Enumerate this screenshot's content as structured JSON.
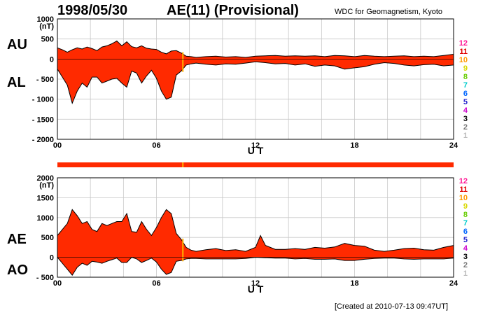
{
  "header": {
    "date": "1998/05/30",
    "title": "AE(11) (Provisional)",
    "source": "WDC for Geomagnetism, Kyoto"
  },
  "footer": {
    "created": "[Created at 2010-07-13 09:47UT]"
  },
  "colors": {
    "fill": "#ff2a00",
    "outline": "#000000",
    "grid": "#c8c8c8",
    "frame": "#000000",
    "highlight": "#ffb000",
    "coverage_bar": "#ff2a00"
  },
  "chart_data": [
    {
      "type": "area",
      "panel": "upper",
      "ylabel_unit": "(nT)",
      "side_labels": [
        "AU",
        "AL"
      ],
      "xlabel": "U T",
      "xlim": [
        0,
        24
      ],
      "ylim": [
        -2000,
        1000
      ],
      "yticks": [
        1000,
        500,
        0,
        -500,
        -1000,
        -1500,
        -2000
      ],
      "ytick_labels": [
        "1000",
        "500",
        "0",
        "- 500",
        "- 1000",
        "- 1500",
        "- 2000"
      ],
      "xticks": [
        0,
        6,
        12,
        18,
        24
      ],
      "xtick_labels": [
        "00",
        "06",
        "12",
        "18",
        "24"
      ],
      "grid": true,
      "highlight_x": 7.6,
      "series": [
        {
          "name": "AU",
          "x": [
            0,
            0.3,
            0.6,
            0.9,
            1.2,
            1.5,
            1.8,
            2.1,
            2.4,
            2.7,
            3.0,
            3.3,
            3.6,
            3.9,
            4.2,
            4.5,
            4.8,
            5.1,
            5.4,
            5.7,
            6.0,
            6.3,
            6.6,
            6.9,
            7.2,
            7.5,
            7.8,
            8.1,
            8.4,
            9,
            9.6,
            10.2,
            10.8,
            11.4,
            12,
            12.6,
            13.2,
            13.8,
            14.4,
            15,
            15.6,
            16.2,
            16.8,
            17.4,
            18,
            18.6,
            19.2,
            19.8,
            20.4,
            21,
            21.6,
            22.2,
            22.8,
            23.4,
            24
          ],
          "y": [
            280,
            230,
            170,
            230,
            280,
            250,
            300,
            260,
            210,
            300,
            330,
            380,
            450,
            330,
            430,
            310,
            280,
            330,
            270,
            250,
            240,
            170,
            130,
            200,
            210,
            150,
            70,
            60,
            40,
            60,
            70,
            50,
            60,
            40,
            70,
            80,
            90,
            70,
            80,
            70,
            80,
            60,
            90,
            80,
            60,
            90,
            70,
            60,
            70,
            80,
            60,
            70,
            60,
            90,
            120
          ]
        },
        {
          "name": "AL",
          "x": [
            0,
            0.3,
            0.6,
            0.9,
            1.2,
            1.5,
            1.8,
            2.1,
            2.4,
            2.7,
            3.0,
            3.3,
            3.6,
            3.9,
            4.2,
            4.5,
            4.8,
            5.1,
            5.4,
            5.7,
            6.0,
            6.3,
            6.6,
            6.9,
            7.2,
            7.5,
            7.8,
            8.1,
            8.4,
            9,
            9.6,
            10.2,
            10.8,
            11.4,
            12,
            12.6,
            13.2,
            13.8,
            14.4,
            15,
            15.6,
            16.2,
            16.8,
            17.4,
            18,
            18.6,
            19.2,
            19.8,
            20.4,
            21,
            21.6,
            22.2,
            22.8,
            23.4,
            24
          ],
          "y": [
            -250,
            -450,
            -650,
            -1100,
            -800,
            -600,
            -700,
            -450,
            -450,
            -600,
            -550,
            -500,
            -480,
            -600,
            -700,
            -300,
            -350,
            -600,
            -420,
            -280,
            -480,
            -800,
            -1000,
            -950,
            -400,
            -300,
            -150,
            -120,
            -100,
            -130,
            -150,
            -120,
            -130,
            -100,
            -70,
            -90,
            -120,
            -110,
            -150,
            -120,
            -180,
            -150,
            -170,
            -250,
            -220,
            -190,
            -130,
            -90,
            -110,
            -150,
            -170,
            -140,
            -130,
            -170,
            -150
          ]
        }
      ]
    },
    {
      "type": "area",
      "panel": "lower",
      "ylabel_unit": "(nT)",
      "side_labels": [
        "AE",
        "AO"
      ],
      "xlabel": "U T",
      "xlim": [
        0,
        24
      ],
      "ylim": [
        -500,
        2000
      ],
      "yticks": [
        2000,
        1500,
        1000,
        500,
        0,
        -500
      ],
      "ytick_labels": [
        "2000",
        "1500",
        "1000",
        "500",
        "0",
        "- 500"
      ],
      "xticks": [
        0,
        6,
        12,
        18,
        24
      ],
      "xtick_labels": [
        "00",
        "06",
        "12",
        "18",
        "24"
      ],
      "grid": true,
      "highlight_x": 7.6,
      "series": [
        {
          "name": "AE",
          "x": [
            0,
            0.3,
            0.6,
            0.9,
            1.2,
            1.5,
            1.8,
            2.1,
            2.4,
            2.7,
            3.0,
            3.3,
            3.6,
            3.9,
            4.2,
            4.5,
            4.8,
            5.1,
            5.4,
            5.7,
            6.0,
            6.3,
            6.6,
            6.9,
            7.2,
            7.5,
            7.8,
            8.1,
            8.4,
            9,
            9.6,
            10.2,
            10.8,
            11.4,
            12,
            12.3,
            12.6,
            13.2,
            13.8,
            14.4,
            15,
            15.6,
            16.2,
            16.8,
            17.4,
            18,
            18.6,
            19.2,
            19.8,
            20.4,
            21,
            21.6,
            22.2,
            22.8,
            23.4,
            24
          ],
          "y": [
            550,
            700,
            850,
            1200,
            1050,
            850,
            900,
            700,
            650,
            850,
            800,
            850,
            900,
            900,
            1100,
            650,
            630,
            900,
            700,
            550,
            750,
            1000,
            1200,
            1100,
            600,
            450,
            250,
            180,
            150,
            190,
            220,
            170,
            190,
            150,
            250,
            550,
            300,
            200,
            200,
            220,
            200,
            250,
            230,
            260,
            350,
            300,
            280,
            180,
            150,
            180,
            220,
            230,
            190,
            180,
            250,
            300
          ]
        },
        {
          "name": "AO",
          "x": [
            0,
            0.3,
            0.6,
            0.9,
            1.2,
            1.5,
            1.8,
            2.1,
            2.4,
            2.7,
            3.0,
            3.3,
            3.6,
            3.9,
            4.2,
            4.5,
            4.8,
            5.1,
            5.4,
            5.7,
            6.0,
            6.3,
            6.6,
            6.9,
            7.2,
            7.5,
            7.8,
            8.1,
            8.4,
            9,
            9.6,
            10.2,
            10.8,
            11.4,
            12,
            12.6,
            13.2,
            13.8,
            14.4,
            15,
            15.6,
            16.2,
            16.8,
            17.4,
            18,
            18.6,
            19.2,
            19.8,
            20.4,
            21,
            21.6,
            22.2,
            22.8,
            23.4,
            24
          ],
          "y": [
            0,
            -150,
            -300,
            -450,
            -250,
            -150,
            -200,
            -100,
            -120,
            -150,
            -100,
            -60,
            -20,
            -130,
            -130,
            0,
            -40,
            -130,
            -80,
            -20,
            -120,
            -300,
            -430,
            -380,
            -100,
            -80,
            -40,
            -30,
            -30,
            -40,
            -40,
            -40,
            -40,
            -30,
            0,
            -10,
            -20,
            -20,
            -40,
            -30,
            -50,
            -50,
            -40,
            -80,
            -80,
            -50,
            -30,
            -20,
            -20,
            -40,
            -50,
            -40,
            -40,
            -40,
            -20
          ]
        }
      ]
    }
  ],
  "hour_scale": {
    "labels": [
      "12",
      "11",
      "10",
      "9",
      "8",
      "7",
      "6",
      "5",
      "4",
      "3",
      "2",
      "1"
    ],
    "colors": [
      "#ff1493",
      "#e00000",
      "#ff9900",
      "#d8d800",
      "#66cc00",
      "#00cccc",
      "#0066ff",
      "#2222cc",
      "#cc00cc",
      "#000000",
      "#777777",
      "#bbbbbb"
    ]
  }
}
